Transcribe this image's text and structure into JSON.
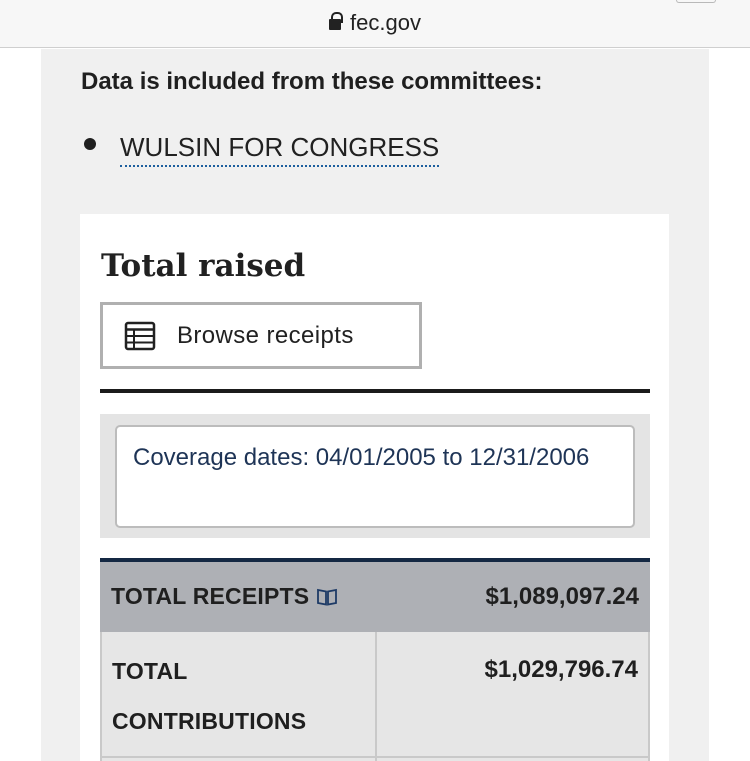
{
  "browser": {
    "url": "fec.gov",
    "icons": {
      "lock": "lock-icon"
    }
  },
  "committees": {
    "intro": "Data is included from these committees:",
    "items": [
      {
        "name": "WULSIN FOR CONGRESS"
      }
    ]
  },
  "total_raised": {
    "title": "Total raised",
    "browse_label": "Browse receipts",
    "browse_icon": "table-icon",
    "coverage_text": "Coverage dates: 04/01/2005 to 12/31/2006",
    "rows": [
      {
        "label": "TOTAL RECEIPTS",
        "amount": "$1,089,097.24",
        "icon": "glossary-book-icon"
      },
      {
        "label": "TOTAL CONTRIBUTIONS",
        "amount": "$1,029,796.74"
      }
    ]
  },
  "colors": {
    "link_underline": "#1d5f9e",
    "coverage_text": "#1e3456",
    "table_header_border": "#142843",
    "receipts_row_bg": "#aeb0b5"
  }
}
